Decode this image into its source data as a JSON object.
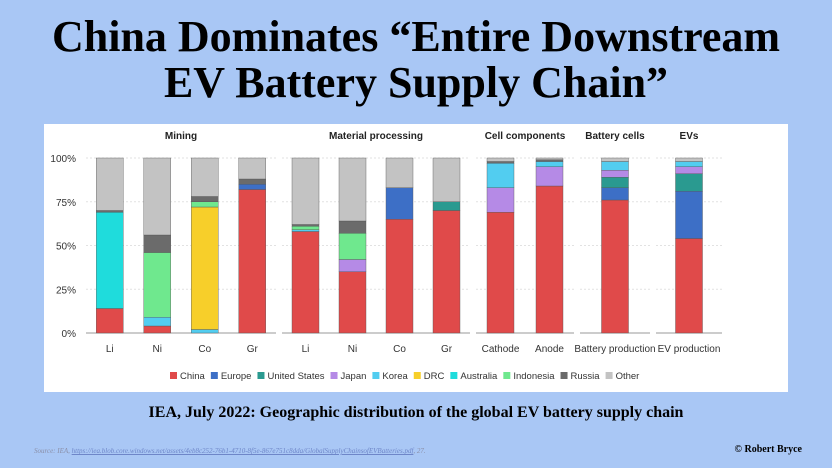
{
  "slide": {
    "title_line1": "China Dominates “Entire Downstream",
    "title_line2": "EV Battery Supply Chain”",
    "caption": "IEA, July 2022: Geographic distribution of the global EV battery supply chain",
    "source_prefix": "Source: IEA,",
    "source_link": "https://iea.blob.core.windows.net/assets/4eb8c252-76b1-4710-8f5e-867e751c8dda/GlobalSupplyChainsofEVBatteries.pdf",
    "source_suffix": ", 27.",
    "credit": "© Robert Bryce",
    "background_color": "#a9c7f5"
  },
  "chart_data": {
    "type": "bar",
    "stacked": true,
    "yticks": [
      "0%",
      "25%",
      "50%",
      "75%",
      "100%"
    ],
    "ylim": [
      0,
      100
    ],
    "legend_position": "bottom",
    "series": [
      {
        "name": "China",
        "color": "#e04a4a"
      },
      {
        "name": "Europe",
        "color": "#3d6fc6"
      },
      {
        "name": "United States",
        "color": "#2a9a90"
      },
      {
        "name": "Japan",
        "color": "#b58ae6"
      },
      {
        "name": "Korea",
        "color": "#52cdf0"
      },
      {
        "name": "DRC",
        "color": "#f7cf2a"
      },
      {
        "name": "Australia",
        "color": "#1fdcdc"
      },
      {
        "name": "Indonesia",
        "color": "#6fe88e"
      },
      {
        "name": "Russia",
        "color": "#6b6b6b"
      },
      {
        "name": "Other",
        "color": "#c3c3c3"
      }
    ],
    "groups": [
      {
        "name": "Mining",
        "bars": [
          {
            "label": "Li",
            "values": {
              "Australia": 55,
              "China": 14,
              "Russia": 1,
              "Other": 30
            }
          },
          {
            "label": "Ni",
            "values": {
              "Indonesia": 37,
              "Korea": 5,
              "China": 4,
              "Russia": 10,
              "Other": 44
            }
          },
          {
            "label": "Co",
            "values": {
              "DRC": 70,
              "Indonesia": 3,
              "Korea": 2,
              "Russia": 3,
              "Other": 22
            }
          },
          {
            "label": "Gr",
            "values": {
              "China": 82,
              "Russia": 3,
              "Europe": 3,
              "Other": 12
            }
          }
        ]
      },
      {
        "name": "Material processing",
        "bars": [
          {
            "label": "Li",
            "values": {
              "China": 58,
              "Indonesia": 2,
              "Korea": 1,
              "Russia": 1,
              "Other": 38
            }
          },
          {
            "label": "Ni",
            "values": {
              "China": 35,
              "Indonesia": 15,
              "Japan": 7,
              "Russia": 7,
              "Other": 36
            }
          },
          {
            "label": "Co",
            "values": {
              "China": 65,
              "Europe": 18,
              "Other": 17
            }
          },
          {
            "label": "Gr",
            "values": {
              "China": 70,
              "United States": 5,
              "Other": 25
            }
          }
        ]
      },
      {
        "name": "Cell components",
        "bars": [
          {
            "label": "Cathode",
            "values": {
              "China": 69,
              "Russia": 1,
              "Japan": 14,
              "Korea": 14,
              "Other": 2
            }
          },
          {
            "label": "Anode",
            "values": {
              "China": 84,
              "Russia": 1,
              "Japan": 11,
              "Korea": 3,
              "Other": 1
            }
          }
        ]
      },
      {
        "name": "Battery cells",
        "bars": [
          {
            "label": "Battery production",
            "values": {
              "China": 76,
              "Europe": 7,
              "United States": 6,
              "Korea": 5,
              "Japan": 4,
              "Other": 2
            }
          }
        ]
      },
      {
        "name": "EVs",
        "bars": [
          {
            "label": "EV production",
            "values": {
              "China": 54,
              "Europe": 27,
              "United States": 10,
              "Korea": 3,
              "Japan": 4,
              "Other": 2
            }
          }
        ]
      }
    ]
  }
}
